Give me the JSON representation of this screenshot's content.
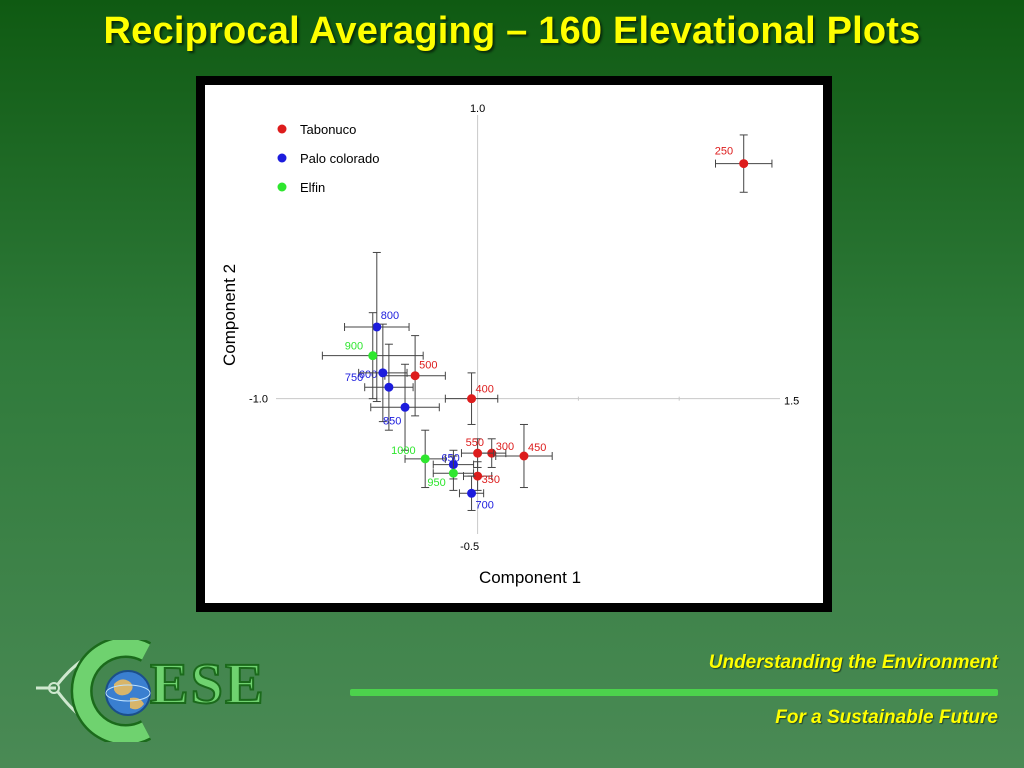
{
  "slide": {
    "title": "Reciprocal Averaging – 160 Elevational Plots",
    "tagline_1": "Understanding the Environment",
    "tagline_2": "For a Sustainable Future",
    "logo_text": "ESE",
    "logo_letter": "C"
  },
  "colors": {
    "background": "#2f7a3a",
    "title": "#ffff00",
    "accent_line": "#4cd24c",
    "tabonuco": "#dd1c1c",
    "palo_colorado": "#1c1cdd",
    "elfin": "#2ee62e"
  },
  "chart_data": {
    "type": "scatter",
    "xlabel": "Component 1",
    "ylabel": "Component 2",
    "xlim": [
      -1.0,
      1.5
    ],
    "ylim": [
      -0.5,
      1.0
    ],
    "axis_labels": {
      "xmin": "-1.0",
      "xmax": "1.5",
      "ymin": "-0.5",
      "ymax": "1.0"
    },
    "legend_position": "top-left",
    "grid": false,
    "series": [
      {
        "name": "Tabonuco",
        "color": "#dd1c1c",
        "points": [
          {
            "label": "250",
            "x": 1.32,
            "y": 0.82,
            "xerr": 0.14,
            "yerr": 0.1
          },
          {
            "label": "300",
            "x": 0.07,
            "y": -0.19,
            "xerr": 0.07,
            "yerr": 0.05
          },
          {
            "label": "350",
            "x": 0.0,
            "y": -0.27,
            "xerr": 0.07,
            "yerr": 0.05
          },
          {
            "label": "400",
            "x": -0.03,
            "y": 0.0,
            "xerr": 0.13,
            "yerr": 0.09
          },
          {
            "label": "450",
            "x": 0.23,
            "y": -0.2,
            "xerr": 0.14,
            "yerr": 0.11
          },
          {
            "label": "500",
            "x": -0.31,
            "y": 0.08,
            "xerr": 0.15,
            "yerr": 0.14
          },
          {
            "label": "550",
            "x": 0.0,
            "y": -0.19,
            "xerr": 0.08,
            "yerr": 0.05
          }
        ]
      },
      {
        "name": "Palo colorado",
        "color": "#1c1cdd",
        "points": [
          {
            "label": "600",
            "x": -0.44,
            "y": 0.04,
            "xerr": 0.12,
            "yerr": 0.15
          },
          {
            "label": "650",
            "x": -0.12,
            "y": -0.23,
            "xerr": 0.1,
            "yerr": 0.05
          },
          {
            "label": "700",
            "x": -0.03,
            "y": -0.33,
            "xerr": 0.06,
            "yerr": 0.06
          },
          {
            "label": "750",
            "x": -0.47,
            "y": 0.09,
            "xerr": 0.12,
            "yerr": 0.17
          },
          {
            "label": "800",
            "x": -0.5,
            "y": 0.25,
            "xerr": 0.16,
            "yerr": 0.26
          },
          {
            "label": "850",
            "x": -0.36,
            "y": -0.03,
            "xerr": 0.17,
            "yerr": 0.15
          }
        ]
      },
      {
        "name": "Elfin",
        "color": "#2ee62e",
        "points": [
          {
            "label": "900",
            "x": -0.52,
            "y": 0.15,
            "xerr": 0.25,
            "yerr": 0.15
          },
          {
            "label": "950",
            "x": -0.12,
            "y": -0.26,
            "xerr": 0.1,
            "yerr": 0.06
          },
          {
            "label": "1000",
            "x": -0.26,
            "y": -0.21,
            "xerr": 0.1,
            "yerr": 0.1
          }
        ]
      }
    ]
  }
}
